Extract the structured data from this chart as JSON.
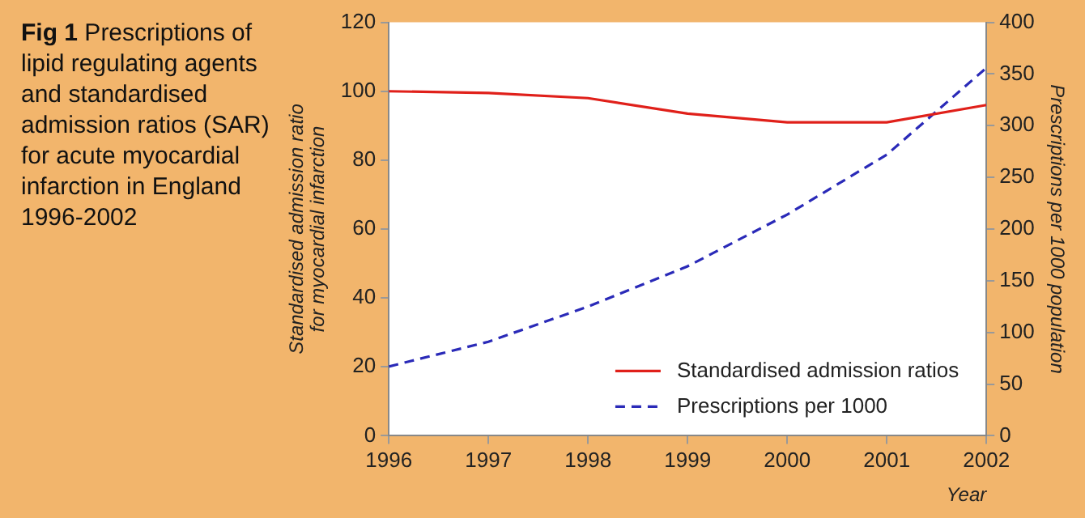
{
  "chart_data": {
    "type": "line",
    "title": "Fig 1 Prescriptions of lipid regulating agents and standardised admission ratios (SAR) for acute myocardial infarction in England 1996-2002",
    "xlabel": "Year",
    "ylabel": "Standardised admission ratio for myocardial infarction",
    "y2label": "Prescriptions per 1000 population",
    "x": [
      1996,
      1997,
      1998,
      1999,
      2000,
      2001,
      2002
    ],
    "xlim": [
      1996,
      2002
    ],
    "xticks": [
      1996,
      1997,
      1998,
      1999,
      2000,
      2001,
      2002
    ],
    "ylim": [
      0,
      120
    ],
    "yticks": [
      0,
      20,
      40,
      60,
      80,
      100,
      120
    ],
    "y2lim": [
      0,
      400
    ],
    "y2ticks": [
      0,
      50,
      100,
      150,
      200,
      250,
      300,
      350,
      400
    ],
    "series": [
      {
        "name": "Standardised admission ratios",
        "color": "#e0201a",
        "line_style": "solid",
        "values": [
          100,
          99.5,
          98,
          93.5,
          91,
          91,
          96
        ]
      },
      {
        "name": "Prescriptions per 1000",
        "color": "#2a2ab8",
        "line_style": "dashed",
        "axis": "y2",
        "values": [
          67,
          91,
          125,
          164,
          214,
          272,
          356
        ]
      }
    ],
    "grid": false,
    "legend": "bottom right",
    "marker": "none"
  }
}
